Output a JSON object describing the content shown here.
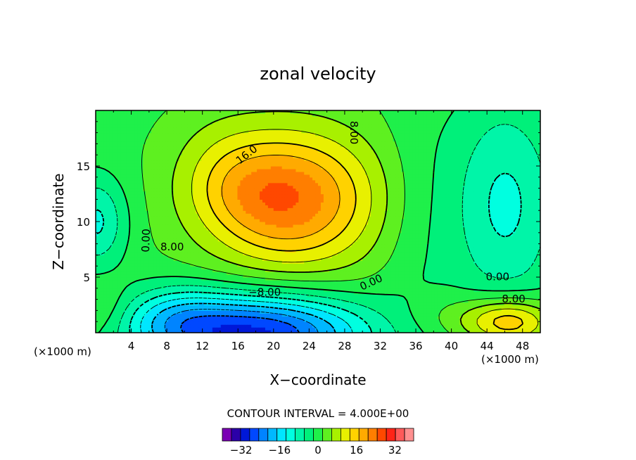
{
  "chart_data": {
    "type": "heatmap",
    "title": "zonal velocity",
    "xlabel": "X−coordinate",
    "ylabel": "Z−coordinate",
    "x_unit_label": "(×1000 m)",
    "y_unit_label": "(×1000 m)",
    "xlim": [
      0,
      50
    ],
    "ylim": [
      0,
      20
    ],
    "x_ticks": [
      4,
      8,
      12,
      16,
      20,
      24,
      28,
      32,
      36,
      40,
      44,
      48
    ],
    "y_ticks": [
      5,
      10,
      15
    ],
    "contour_interval_text": "CONTOUR INTERVAL = 4.000E+00",
    "contour_labels": [
      {
        "text": "16.0",
        "x": 17.0,
        "y": 16.0,
        "angle": -38
      },
      {
        "text": "8.00",
        "x": 8.6,
        "y": 7.7,
        "angle": 0
      },
      {
        "text": "0.00",
        "x": 5.7,
        "y": 8.3,
        "angle": -88
      },
      {
        "text": "8.00",
        "x": 29.0,
        "y": 18.0,
        "angle": 90
      },
      {
        "text": "−8.00",
        "x": 19.0,
        "y": 3.6,
        "angle": 0
      },
      {
        "text": "0.00",
        "x": 31.0,
        "y": 4.5,
        "angle": -25
      },
      {
        "text": "0.00",
        "x": 45.2,
        "y": 5.0,
        "angle": 0
      },
      {
        "text": "8.00",
        "x": 47.0,
        "y": 3.0,
        "angle": 0
      }
    ],
    "colorbar": {
      "levels": [
        -36,
        -32,
        -28,
        -24,
        -20,
        -16,
        -12,
        -8,
        -4,
        0,
        4,
        8,
        12,
        16,
        20,
        24,
        28,
        32,
        36
      ],
      "tick_labels": [
        "−32",
        "−16",
        "0",
        "16",
        "32"
      ],
      "tick_values": [
        -32,
        -16,
        0,
        16,
        32
      ],
      "colors": [
        "#7a00b4",
        "#2b00a8",
        "#0018d8",
        "#0048ff",
        "#0084ff",
        "#00b8ff",
        "#00e6ff",
        "#00ffe0",
        "#00f5a8",
        "#00f07a",
        "#1ff04a",
        "#5ef020",
        "#a8f000",
        "#e8f000",
        "#ffd200",
        "#ffaa00",
        "#ff7e00",
        "#ff4800",
        "#ff2418",
        "#ff5a5a",
        "#ff9090"
      ]
    }
  }
}
